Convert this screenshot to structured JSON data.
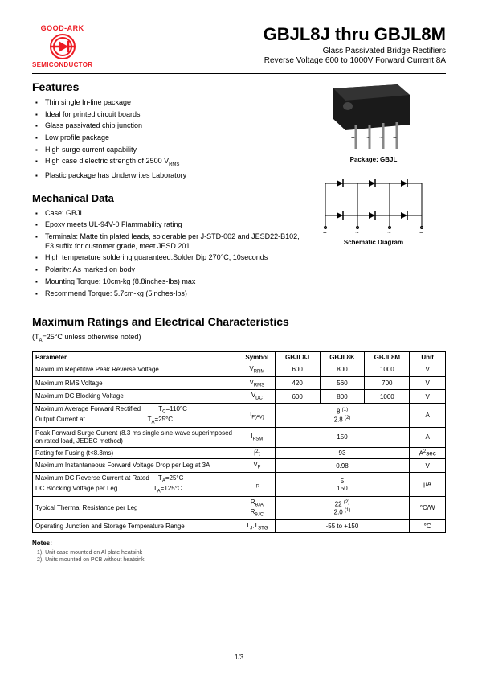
{
  "logo": {
    "top_text": "GOOD-ARK",
    "bottom_text": "SEMICONDUCTOR",
    "red": "#ed1c24"
  },
  "header": {
    "title": "GBJL8J thru GBJL8M",
    "subtitle1": "Glass Passivated Bridge Rectifiers",
    "subtitle2": "Reverse Voltage 600 to 1000V  Forward Current 8A"
  },
  "features": {
    "title": "Features",
    "items": [
      "Thin single In-line package",
      "Ideal for printed circuit boards",
      "Glass passivated chip junction",
      "Low profile package",
      "High surge current capability",
      "High case dielectric strength of 2500 V<sub>RMS</sub>",
      "Plastic package has Underwrites Laboratory"
    ]
  },
  "mechanical": {
    "title": "Mechanical Data",
    "items": [
      "Case: GBJL",
      "Epoxy meets UL-94V-0 Flammability rating",
      "Terminals: Matte tin plated leads, solderable per J-STD-002 and JESD22-B102, E3 suffix for customer grade, meet JESD 201",
      "High temperature soldering guaranteed:Solder Dip 270°C, 10seconds",
      "Polarity: As marked on body",
      "Mounting Torque: 10cm-kg (8.8inches-lbs) max",
      "Recommend Torque: 5.7cm-kg (5inches-lbs)"
    ]
  },
  "package_caption": "Package: GBJL",
  "schematic_caption": "Schematic Diagram",
  "ratings": {
    "title": "Maximum Ratings and Electrical Characteristics",
    "condition": "(T<sub>A</sub>=25°C unless otherwise noted)",
    "columns": [
      "Parameter",
      "Symbol",
      "GBJL8J",
      "GBJL8K",
      "GBJL8M",
      "Unit"
    ]
  },
  "table_rows": [
    {
      "param": "Maximum Repetitive Peak Reverse Voltage",
      "symbol": "V<sub>RRM</sub>",
      "v1": "600",
      "v2": "800",
      "v3": "1000",
      "unit": "V",
      "span": 0
    },
    {
      "param": "Maximum RMS Voltage",
      "symbol": "V<sub>RMS</sub>",
      "v1": "420",
      "v2": "560",
      "v3": "700",
      "unit": "V",
      "span": 0
    },
    {
      "param": "Maximum DC Blocking Voltage",
      "symbol": "V<sub>DC</sub>",
      "v1": "600",
      "v2": "800",
      "v3": "1000",
      "unit": "V",
      "span": 0
    },
    {
      "param": "Maximum Average Forward Rectified&nbsp;&nbsp;&nbsp;&nbsp;&nbsp;&nbsp;&nbsp;&nbsp;&nbsp;&nbsp;T<sub>C</sub>=110°C<br>Output Current at&nbsp;&nbsp;&nbsp;&nbsp;&nbsp;&nbsp;&nbsp;&nbsp;&nbsp;&nbsp;&nbsp;&nbsp;&nbsp;&nbsp;&nbsp;&nbsp;&nbsp;&nbsp;&nbsp;&nbsp;&nbsp;&nbsp;&nbsp;&nbsp;&nbsp;&nbsp;&nbsp;&nbsp;&nbsp;&nbsp;&nbsp;&nbsp;&nbsp;&nbsp;&nbsp;T<sub>A</sub>=25°C",
      "symbol": "I<sub>F(AV)</sub>",
      "v1": "8 <sup>(1)</sup><br>2.8 <sup>(2)</sup>",
      "unit": "A",
      "span": 3
    },
    {
      "param": "Peak Forward Surge Current (8.3 ms single sine-wave superimposed on rated load, JEDEC method)",
      "symbol": "I<sub>FSM</sub>",
      "v1": "150",
      "unit": "A",
      "span": 3
    },
    {
      "param": "Rating for Fusing (t&lt;8.3ms)",
      "symbol": "I<sup>2</sup>t",
      "v1": "93",
      "unit": "A<sup>2</sup>sec",
      "span": 3
    },
    {
      "param": "Maximum Instantaneous Forward Voltage Drop per Leg at 3A",
      "symbol": "V<sub>F</sub>",
      "v1": "0.98",
      "unit": "V",
      "span": 3
    },
    {
      "param": "Maximum DC Reverse Current at Rated&nbsp;&nbsp;&nbsp;&nbsp;&nbsp;T<sub>A</sub>=25°C<br>DC Blocking Voltage per Leg&nbsp;&nbsp;&nbsp;&nbsp;&nbsp;&nbsp;&nbsp;&nbsp;&nbsp;&nbsp;&nbsp;&nbsp;&nbsp;&nbsp;&nbsp;&nbsp;&nbsp;&nbsp;&nbsp;&nbsp;T<sub>A</sub>=125°C",
      "symbol": "I<sub>R</sub>",
      "v1": "5<br>150",
      "unit": "μA",
      "span": 3
    },
    {
      "param": "Typical Thermal Resistance per Leg",
      "symbol": "R<sub>θJA</sub><br>R<sub>θJC</sub>",
      "v1": "22 <sup>(2)</sup><br>2.0 <sup>(1)</sup>",
      "unit": "°C/W",
      "span": 3
    },
    {
      "param": "Operating Junction and Storage Temperature Range",
      "symbol": "T<sub>J</sub>,T<sub>STG</sub>",
      "v1": "-55 to +150",
      "unit": "°C",
      "span": 3
    }
  ],
  "notes": {
    "title": "Notes:",
    "items": [
      "1). Unit case mounted on Al plate heatsink",
      "2). Units mounted on PCB without heatsink"
    ]
  },
  "page_number": "1/3"
}
